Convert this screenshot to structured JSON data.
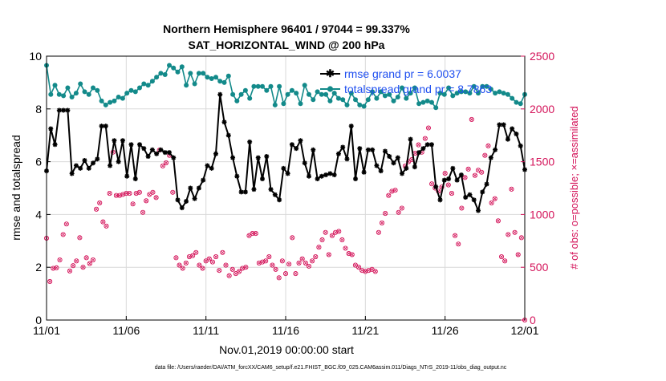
{
  "chart_data": {
    "type": "line",
    "title_line1": "Northern Hemisphere 96401 / 97044 = 99.337%",
    "title_line2": "SAT_HORIZONTAL_WIND @ 200 hPa",
    "xlabel": "Nov.01,2019 00:00:00 start",
    "ylabel_left": "rmse and totalspread",
    "ylabel_right": "# of obs: o=possible; ×=assimilated",
    "footer": "data file: /Users/raeder/DAI/ATM_forcXX/CAM6_setup/f.e21.FHIST_BGC.f09_025.CAM6assim.011/Diags_NTrS_2019-11/obs_diag_output.nc",
    "x_tick_labels": [
      "11/01",
      "11/06",
      "11/11",
      "11/16",
      "11/21",
      "11/26",
      "12/01"
    ],
    "x_tick_days": [
      0,
      5,
      10,
      15,
      20,
      25,
      30
    ],
    "xlim_days": [
      0,
      30
    ],
    "ylim_left": [
      0,
      10
    ],
    "ylim_right": [
      0,
      2500
    ],
    "y_left_ticks": [
      "0",
      "2",
      "4",
      "6",
      "8",
      "10"
    ],
    "y_right_ticks": [
      "0",
      "500",
      "1000",
      "1500",
      "2000",
      "2500"
    ],
    "legend_position": "top-right",
    "colors": {
      "rmse": "#000000",
      "spread": "#138a8a",
      "obs": "#d4145a"
    },
    "series": [
      {
        "name": "rmse grand mean",
        "legend": "rmse grand pr = 6.0037",
        "axis": "left",
        "values": [
          5.65,
          7.25,
          6.65,
          7.95,
          7.95,
          7.95,
          5.55,
          5.85,
          5.75,
          6.05,
          5.75,
          5.95,
          6.1,
          7.35,
          7.35,
          5.85,
          6.8,
          6.0,
          6.8,
          5.45,
          6.65,
          5.35,
          6.65,
          6.5,
          6.2,
          6.45,
          6.3,
          6.45,
          6.35,
          6.35,
          6.15,
          4.55,
          4.25,
          4.5,
          5.0,
          4.6,
          5.0,
          5.3,
          5.85,
          5.75,
          6.3,
          8.55,
          7.5,
          7.0,
          6.15,
          5.45,
          4.85,
          4.85,
          6.75,
          4.95,
          6.15,
          5.35,
          6.2,
          4.95,
          4.75,
          4.55,
          5.75,
          5.55,
          6.65,
          6.5,
          6.8,
          5.95,
          5.45,
          6.45,
          5.35,
          5.45,
          5.5,
          5.55,
          5.5,
          6.3,
          6.55,
          6.1,
          7.35,
          5.35,
          6.5,
          5.6,
          6.45,
          6.45,
          5.85,
          5.65,
          6.4,
          6.2,
          5.95,
          6.15,
          5.55,
          5.75,
          6.85,
          5.8,
          6.35,
          6.5,
          6.65,
          6.65,
          5.05,
          4.55,
          5.3,
          5.35,
          5.75,
          5.3,
          5.5,
          4.65,
          4.75,
          4.55,
          4.15,
          4.85,
          5.15,
          6.15,
          6.45,
          7.4,
          7.4,
          6.85,
          7.25,
          7.05,
          6.6,
          5.7
        ]
      },
      {
        "name": "totalspread grand mean",
        "legend": "totalspread grand pr = 8.7863",
        "axis": "left",
        "values": [
          9.65,
          8.55,
          8.9,
          8.55,
          8.5,
          8.8,
          8.45,
          8.6,
          8.95,
          8.65,
          8.55,
          8.8,
          8.7,
          8.3,
          8.15,
          8.25,
          8.3,
          8.45,
          8.4,
          8.6,
          8.7,
          8.65,
          8.8,
          8.95,
          8.9,
          9.05,
          9.2,
          9.35,
          9.3,
          9.65,
          9.55,
          9.4,
          9.6,
          8.9,
          9.35,
          8.95,
          9.35,
          9.35,
          9.2,
          9.15,
          9.2,
          9.05,
          9.0,
          9.25,
          8.55,
          8.3,
          8.55,
          8.7,
          8.4,
          8.85,
          8.85,
          8.85,
          8.7,
          8.85,
          8.15,
          8.85,
          8.2,
          8.55,
          8.7,
          8.6,
          8.2,
          8.9,
          8.55,
          8.35,
          8.65,
          8.55,
          8.55,
          8.3,
          8.6,
          8.4,
          8.35,
          8.15,
          8.6,
          8.35,
          8.15,
          8.1,
          8.35,
          8.65,
          8.4,
          8.65,
          8.5,
          8.55,
          8.3,
          8.45,
          8.8,
          8.4,
          8.6,
          8.8,
          8.2,
          8.25,
          8.3,
          8.25,
          8.05,
          8.6,
          8.55,
          8.8,
          8.5,
          8.6,
          8.65,
          8.65,
          8.6,
          8.85,
          8.6,
          8.85,
          8.85,
          8.75,
          8.6,
          8.65,
          8.6,
          8.55,
          8.4,
          8.25,
          8.2,
          8.55
        ]
      },
      {
        "name": "observations possible",
        "axis": "right",
        "values": [
          775,
          365,
          490,
          495,
          570,
          810,
          910,
          465,
          515,
          560,
          780,
          500,
          590,
          535,
          570,
          1050,
          1110,
          930,
          890,
          1200,
          1590,
          1180,
          1180,
          1190,
          1200,
          1200,
          1100,
          1200,
          1210,
          1020,
          1130,
          1190,
          1210,
          1160,
          1610,
          1460,
          1490,
          1560,
          1210,
          590,
          520,
          490,
          540,
          600,
          610,
          640,
          520,
          490,
          560,
          580,
          550,
          600,
          470,
          640,
          520,
          420,
          480,
          440,
          460,
          490,
          500,
          800,
          820,
          820,
          540,
          550,
          560,
          600,
          520,
          480,
          400,
          560,
          440,
          530,
          780,
          440,
          540,
          580,
          540,
          510,
          560,
          600,
          690,
          760,
          830,
          620,
          800,
          830,
          840,
          760,
          680,
          630,
          620,
          520,
          500,
          470,
          460,
          470,
          480,
          460,
          830,
          920,
          1010,
          1180,
          1220,
          1230,
          1020,
          1060,
          1460,
          1500,
          1520,
          1580,
          1660,
          1590,
          1720,
          1820,
          1290,
          1250,
          1220,
          1260,
          1390,
          1280,
          1200,
          800,
          720,
          1060,
          1350,
          1430,
          1900,
          1370,
          1420,
          1400,
          1560,
          1650,
          1110,
          1150,
          940,
          600,
          560,
          810,
          1240,
          830,
          620,
          780,
          0
        ]
      }
    ]
  }
}
